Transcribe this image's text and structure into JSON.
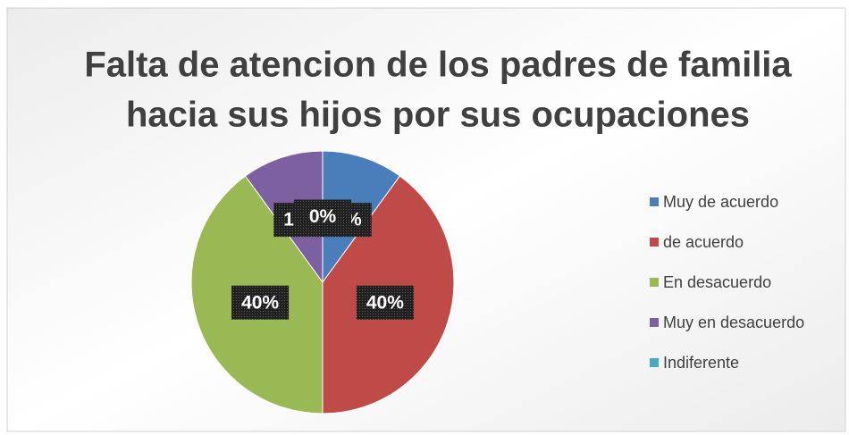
{
  "chart_data": {
    "type": "pie",
    "title": [
      "Falta de atencion de los padres de familia",
      "hacia sus hijos por sus ocupaciones"
    ],
    "categories": [
      "Muy de acuerdo",
      "de acuerdo",
      "En desacuerdo",
      "Muy en desacuerdo",
      "Indiferente"
    ],
    "values": [
      10,
      40,
      40,
      10,
      0
    ],
    "value_labels": [
      "10%",
      "40%",
      "40%",
      "10%",
      "0%"
    ],
    "colors": [
      "#4a7ebb",
      "#be4b48",
      "#98b954",
      "#7d60a0",
      "#46aac5"
    ],
    "legend": "right"
  }
}
